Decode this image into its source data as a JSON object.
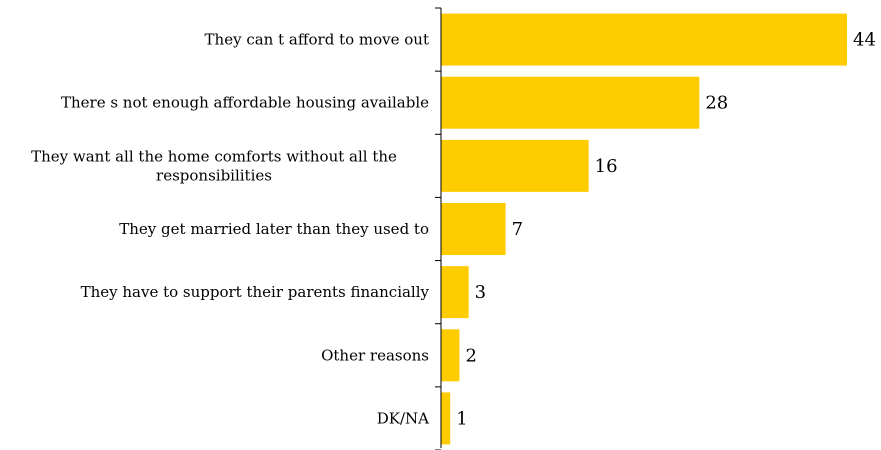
{
  "chart_data": {
    "type": "bar",
    "orientation": "horizontal",
    "categories": [
      "They can t afford to move out",
      "There s not enough affordable housing available",
      "They want all the home comforts without all the responsibilities",
      "They get married later than they used to",
      "They have to support their parents financially",
      "Other reasons",
      "DK/NA"
    ],
    "category_lines": [
      [
        "They can t afford to move out"
      ],
      [
        "There s not enough affordable housing available"
      ],
      [
        "They want all the home comforts without all the",
        "responsibilities"
      ],
      [
        "They get married later than they used to"
      ],
      [
        "They have to support their parents financially"
      ],
      [
        "Other reasons"
      ],
      [
        "DK/NA"
      ]
    ],
    "values": [
      44,
      28,
      16,
      7,
      3,
      2,
      1
    ],
    "data_labels": [
      "44",
      "28",
      "16",
      "7",
      "3",
      "2",
      "1"
    ],
    "title": "",
    "xlabel": "",
    "ylabel": "",
    "xlim": [
      0,
      44
    ],
    "grid": false,
    "legend": "none",
    "bar_color": "#FFCC00",
    "axis_color": "#000000"
  }
}
